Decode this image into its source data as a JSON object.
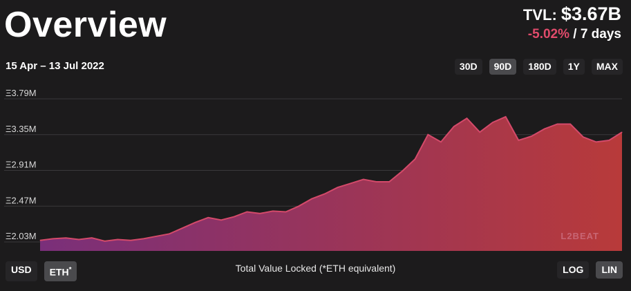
{
  "header": {
    "title": "Overview",
    "tvl_label": "TVL:",
    "tvl_value": "$3.67B",
    "tvl_change": "-5.02%",
    "tvl_period": "/ 7 days"
  },
  "date_range": "15 Apr – 13 Jul 2022",
  "range_buttons": [
    "30D",
    "90D",
    "180D",
    "1Y",
    "MAX"
  ],
  "range_selected": "90D",
  "currency_buttons": {
    "usd": "USD",
    "eth": "ETH",
    "eth_marker": "*"
  },
  "currency_selected": "ETH",
  "scale_buttons": {
    "log": "LOG",
    "lin": "LIN"
  },
  "scale_selected": "LIN",
  "caption": "Total Value Locked (*ETH equivalent)",
  "watermark": "L2BEAT",
  "colors": {
    "background": "#1c1b1c",
    "negative_change": "#e14b6b",
    "fill_start": "#7a2f7a",
    "fill_end": "#b83a3a",
    "line": "#d44a6a"
  },
  "chart_data": {
    "type": "area",
    "x": [
      "2022-04-15",
      "2022-04-17",
      "2022-04-19",
      "2022-04-21",
      "2022-04-23",
      "2022-04-25",
      "2022-04-27",
      "2022-04-29",
      "2022-05-01",
      "2022-05-03",
      "2022-05-05",
      "2022-05-07",
      "2022-05-09",
      "2022-05-11",
      "2022-05-13",
      "2022-05-15",
      "2022-05-17",
      "2022-05-19",
      "2022-05-21",
      "2022-05-23",
      "2022-05-25",
      "2022-05-27",
      "2022-05-29",
      "2022-05-31",
      "2022-06-02",
      "2022-06-04",
      "2022-06-06",
      "2022-06-08",
      "2022-06-10",
      "2022-06-12",
      "2022-06-14",
      "2022-06-16",
      "2022-06-18",
      "2022-06-20",
      "2022-06-22",
      "2022-06-24",
      "2022-06-26",
      "2022-06-28",
      "2022-06-30",
      "2022-07-02",
      "2022-07-04",
      "2022-07-06",
      "2022-07-08",
      "2022-07-10",
      "2022-07-12",
      "2022-07-13"
    ],
    "values": [
      2.05,
      2.07,
      2.08,
      2.06,
      2.08,
      2.04,
      2.06,
      2.05,
      2.07,
      2.1,
      2.13,
      2.2,
      2.27,
      2.33,
      2.3,
      2.34,
      2.4,
      2.38,
      2.41,
      2.4,
      2.47,
      2.56,
      2.62,
      2.7,
      2.75,
      2.8,
      2.77,
      2.77,
      2.9,
      3.05,
      3.35,
      3.26,
      3.45,
      3.55,
      3.38,
      3.5,
      3.57,
      3.28,
      3.33,
      3.42,
      3.48,
      3.48,
      3.32,
      3.26,
      3.28,
      3.38
    ],
    "y_ticks": [
      "Ξ3.79M",
      "Ξ3.35M",
      "Ξ2.91M",
      "Ξ2.47M",
      "Ξ2.03M"
    ],
    "ylim": [
      1.92,
      3.79
    ],
    "y_unit": "millions ETH",
    "grid": true,
    "legend": "none"
  }
}
